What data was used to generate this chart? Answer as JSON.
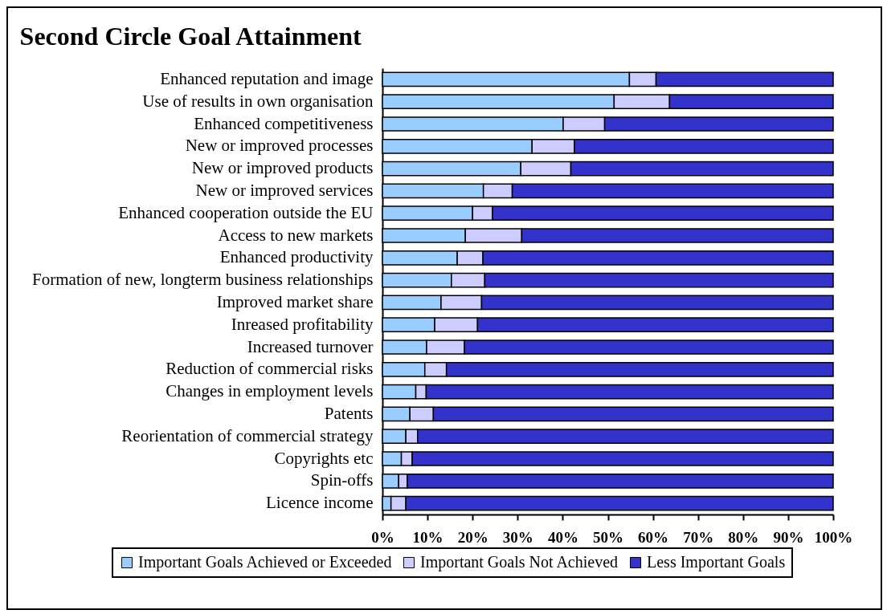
{
  "chart_data": {
    "type": "bar",
    "orientation": "horizontal",
    "stacked": true,
    "title": "Second Circle Goal Attainment",
    "categories": [
      "Enhanced reputation and image",
      "Use of results in own organisation",
      "Enhanced competitiveness",
      "New or improved processes",
      "New or improved products",
      "New or improved services",
      "Enhanced cooperation outside the EU",
      "Access to new markets",
      "Enhanced productivity",
      "Formation of new, longterm business relationships",
      "Improved market share",
      "Inreased profitability",
      "Increased turnover",
      "Reduction of commercial risks",
      "Changes in employment levels",
      "Patents",
      "Reorientation of commercial strategy",
      "Copyrights etc",
      "Spin-offs",
      "Licence income"
    ],
    "series": [
      {
        "name": "Important Goals Achieved or Exceeded",
        "color": "#99ccff",
        "values": [
          54.8,
          51.4,
          40.1,
          33.2,
          30.7,
          22.4,
          20.0,
          18.4,
          16.6,
          15.3,
          13.0,
          11.6,
          9.8,
          9.4,
          7.4,
          6.1,
          5.2,
          4.2,
          3.6,
          1.9
        ]
      },
      {
        "name": "Important Goals Not Achieved",
        "color": "#ccccff",
        "values": [
          5.9,
          12.3,
          9.2,
          9.4,
          11.1,
          6.4,
          4.4,
          12.5,
          5.7,
          7.4,
          9.0,
          9.5,
          8.4,
          4.8,
          2.3,
          5.2,
          2.6,
          2.4,
          1.9,
          3.3
        ]
      },
      {
        "name": "Less Important Goals",
        "color": "#3333cc",
        "values": [
          39.3,
          36.3,
          50.7,
          57.4,
          58.2,
          71.2,
          75.6,
          69.1,
          77.7,
          77.3,
          78.0,
          78.9,
          81.8,
          85.8,
          90.3,
          88.7,
          92.2,
          93.4,
          94.5,
          94.8
        ]
      }
    ],
    "xlim": [
      0,
      100
    ],
    "xticks": [
      {
        "value": 0,
        "label": "0%"
      },
      {
        "value": 10,
        "label": "10%"
      },
      {
        "value": 20,
        "label": "20%"
      },
      {
        "value": 30,
        "label": "30%"
      },
      {
        "value": 40,
        "label": "40%"
      },
      {
        "value": 50,
        "label": "50%"
      },
      {
        "value": 60,
        "label": "60%"
      },
      {
        "value": 70,
        "label": "70%"
      },
      {
        "value": 80,
        "label": "80%"
      },
      {
        "value": 90,
        "label": "90%"
      },
      {
        "value": 100,
        "label": "100%"
      }
    ],
    "legend": "bottom"
  }
}
